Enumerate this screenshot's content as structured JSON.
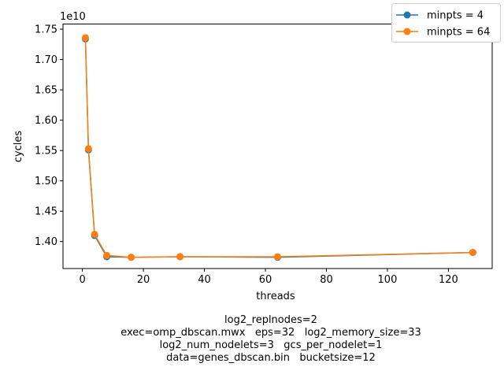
{
  "chart_data": {
    "type": "line",
    "xlabel": "threads",
    "ylabel": "cycles",
    "y_offset_label": "1e10",
    "x_ticks": [
      0,
      20,
      40,
      60,
      80,
      100,
      120
    ],
    "y_ticks": [
      1.4,
      1.45,
      1.5,
      1.55,
      1.6,
      1.65,
      1.7,
      1.75
    ],
    "y_tick_labels": [
      "1.40",
      "1.45",
      "1.50",
      "1.55",
      "1.60",
      "1.65",
      "1.70",
      "1.75"
    ],
    "xlim": [
      -6.35,
      134.35
    ],
    "ylim": [
      1.3555,
      1.7585
    ],
    "legend_position": "top-right",
    "x": [
      1,
      2,
      4,
      8,
      16,
      32,
      64,
      128
    ],
    "series": [
      {
        "name": "minpts = 4",
        "color": "#1f77b4",
        "values": [
          1.734,
          1.551,
          1.41,
          1.375,
          1.374,
          1.375,
          1.374,
          1.382
        ]
      },
      {
        "name": "minpts = 64",
        "color": "#ff7f0e",
        "values": [
          1.736,
          1.553,
          1.412,
          1.377,
          1.374,
          1.375,
          1.375,
          1.382
        ]
      }
    ]
  },
  "caption": [
    "log2_replnodes=2",
    "exec=omp_dbscan.mwx   eps=32   log2_memory_size=33",
    "log2_num_nodelets=3   gcs_per_nodelet=1",
    "data=genes_dbscan.bin   bucketsize=12"
  ]
}
